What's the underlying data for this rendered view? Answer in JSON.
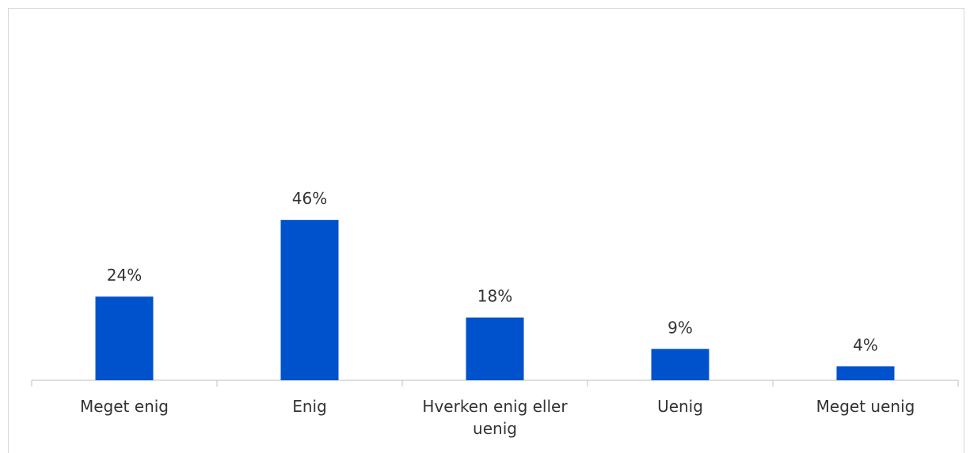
{
  "chart_data": {
    "type": "bar",
    "categories": [
      "Meget enig",
      "Enig",
      "Hverken enig eller uenig",
      "Uenig",
      "Meget uenig"
    ],
    "values": [
      24,
      46,
      18,
      9,
      4
    ],
    "value_labels": [
      "24%",
      "46%",
      "18%",
      "9%",
      "4%"
    ],
    "color": "#0052cc"
  }
}
